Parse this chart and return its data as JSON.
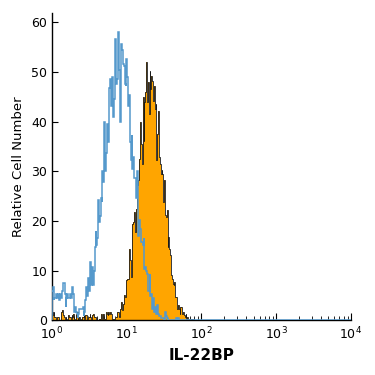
{
  "xlabel": "IL-22BP",
  "ylabel": "Relative Cell Number",
  "xlim_log": [
    0,
    4
  ],
  "ylim": [
    0,
    62
  ],
  "yticks": [
    0,
    10,
    20,
    30,
    40,
    50,
    60
  ],
  "xlabel_fontsize": 11,
  "ylabel_fontsize": 9.5,
  "tick_fontsize": 9,
  "filled_color": "#FFA500",
  "filled_edge_color": "#1a1a1a",
  "open_color": "#5599CC",
  "background_color": "#FFFFFF",
  "filled_peak_log": 1.32,
  "filled_peak_height": 52,
  "filled_std_log": 0.16,
  "open_peak_log": 0.9,
  "open_peak_height": 58,
  "open_std_log": 0.2,
  "n_bins": 350,
  "seed": 42
}
